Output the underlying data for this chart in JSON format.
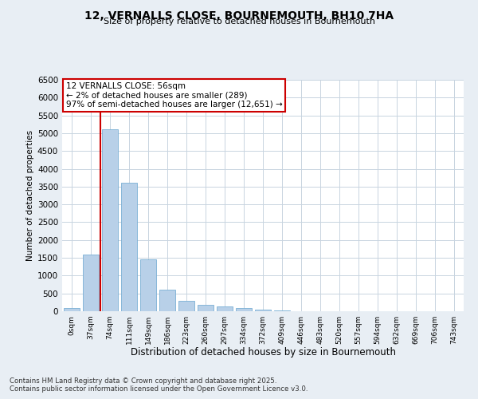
{
  "title_line1": "12, VERNALLS CLOSE, BOURNEMOUTH, BH10 7HA",
  "title_line2": "Size of property relative to detached houses in Bournemouth",
  "xlabel": "Distribution of detached houses by size in Bournemouth",
  "ylabel": "Number of detached properties",
  "bar_color": "#b8d0e8",
  "bar_edge_color": "#7aafd4",
  "bar_values": [
    100,
    1600,
    5100,
    3600,
    1450,
    600,
    300,
    175,
    125,
    100,
    50,
    20,
    10,
    5,
    3,
    2,
    1,
    1,
    0,
    0,
    0
  ],
  "bar_labels": [
    "0sqm",
    "37sqm",
    "74sqm",
    "111sqm",
    "149sqm",
    "186sqm",
    "223sqm",
    "260sqm",
    "297sqm",
    "334sqm",
    "372sqm",
    "409sqm",
    "446sqm",
    "483sqm",
    "520sqm",
    "557sqm",
    "594sqm",
    "632sqm",
    "669sqm",
    "706sqm",
    "743sqm"
  ],
  "ylim": [
    0,
    6500
  ],
  "yticks": [
    0,
    500,
    1000,
    1500,
    2000,
    2500,
    3000,
    3500,
    4000,
    4500,
    5000,
    5500,
    6000,
    6500
  ],
  "vline_x": 1.5,
  "vline_color": "#cc0000",
  "annotation_title": "12 VERNALLS CLOSE: 56sqm",
  "annotation_line1": "← 2% of detached houses are smaller (289)",
  "annotation_line2": "97% of semi-detached houses are larger (12,651) →",
  "annotation_box_color": "#cc0000",
  "footnote_line1": "Contains HM Land Registry data © Crown copyright and database right 2025.",
  "footnote_line2": "Contains public sector information licensed under the Open Government Licence v3.0.",
  "bg_color": "#e8eef4",
  "plot_bg_color": "#ffffff",
  "grid_color": "#c8d4e0"
}
